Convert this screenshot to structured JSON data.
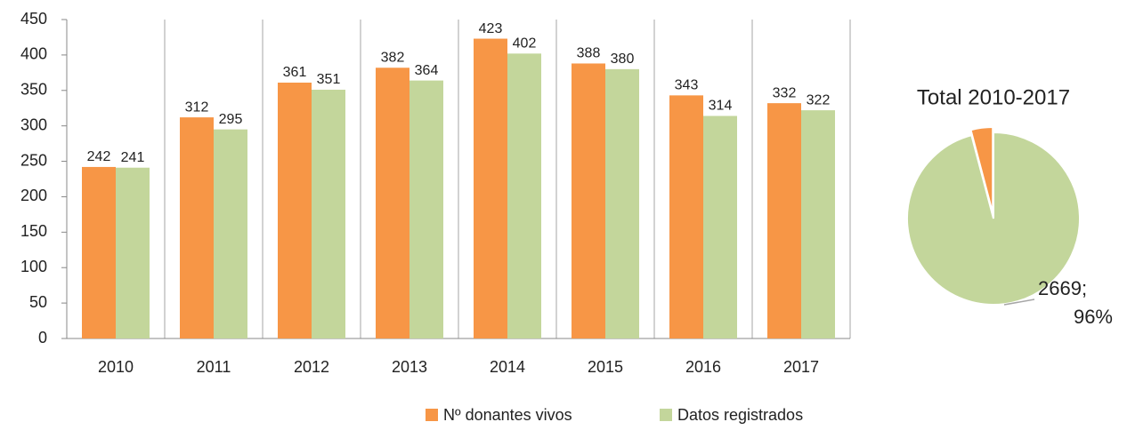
{
  "chart_data": [
    {
      "type": "bar",
      "categories": [
        "2010",
        "2011",
        "2012",
        "2013",
        "2014",
        "2015",
        "2016",
        "2017"
      ],
      "series": [
        {
          "name": "Nº donantes vivos",
          "color": "#f79646",
          "values": [
            242,
            312,
            361,
            382,
            423,
            388,
            343,
            332
          ]
        },
        {
          "name": "Datos registrados",
          "color": "#c3d69b",
          "values": [
            241,
            295,
            351,
            364,
            402,
            380,
            314,
            322
          ]
        }
      ],
      "ylim": [
        0,
        450
      ],
      "yticks": [
        0,
        50,
        100,
        150,
        200,
        250,
        300,
        350,
        400,
        450
      ],
      "vertical_separators": true,
      "legend": "bottom"
    },
    {
      "type": "pie",
      "title": "Total 2010-2017",
      "values": [
        2669,
        114
      ],
      "colors": [
        "#c3d69b",
        "#f79646"
      ],
      "value_labels": [
        [
          "2669;",
          "96%"
        ],
        null
      ]
    }
  ]
}
